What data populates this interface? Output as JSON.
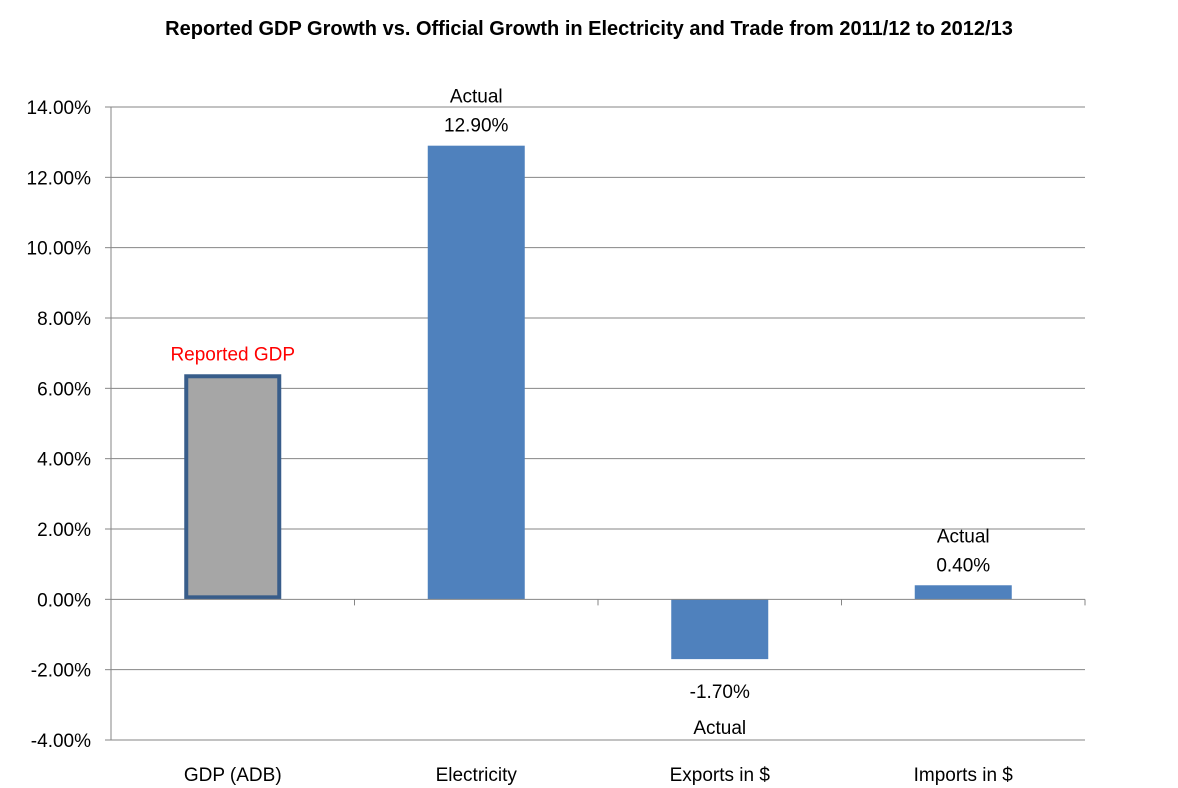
{
  "chart_data": {
    "type": "bar",
    "title": "Reported GDP Growth vs. Official Growth in Electricity and Trade from 2011/12 to 2012/13",
    "xlabel": "",
    "ylabel": "",
    "ylim": [
      -4,
      14
    ],
    "y_tick_step": 2,
    "y_tick_labels": [
      "-4.00%",
      "-2.00%",
      "0.00%",
      "2.00%",
      "4.00%",
      "6.00%",
      "8.00%",
      "10.00%",
      "12.00%",
      "14.00%"
    ],
    "grid": true,
    "legend": "none",
    "categories": [
      "GDP (ADB)",
      "Electricity",
      "Exports in $",
      "Imports in $"
    ],
    "values": [
      6.4,
      12.9,
      -1.7,
      0.4
    ],
    "value_unit": "%",
    "colors": {
      "default_bar": "#4f81bd",
      "highlight_bar_fill": "#a6a6a6",
      "highlight_bar_border": "#385d8a",
      "gridline": "#868686",
      "axis": "#868686",
      "red_annotation": "#ff0000",
      "text": "#000000"
    },
    "highlighted_category": "GDP (ADB)",
    "annotations": [
      {
        "category": "GDP (ADB)",
        "lines": [
          "Reported GDP"
        ],
        "color": "red"
      },
      {
        "category": "Electricity",
        "lines": [
          "Actual",
          "12.90%"
        ],
        "color": "black"
      },
      {
        "category": "Exports in $",
        "lines": [
          "-1.70%",
          "Actual"
        ],
        "color": "black"
      },
      {
        "category": "Imports in $",
        "lines": [
          "Actual",
          "0.40%"
        ],
        "color": "black"
      }
    ]
  }
}
